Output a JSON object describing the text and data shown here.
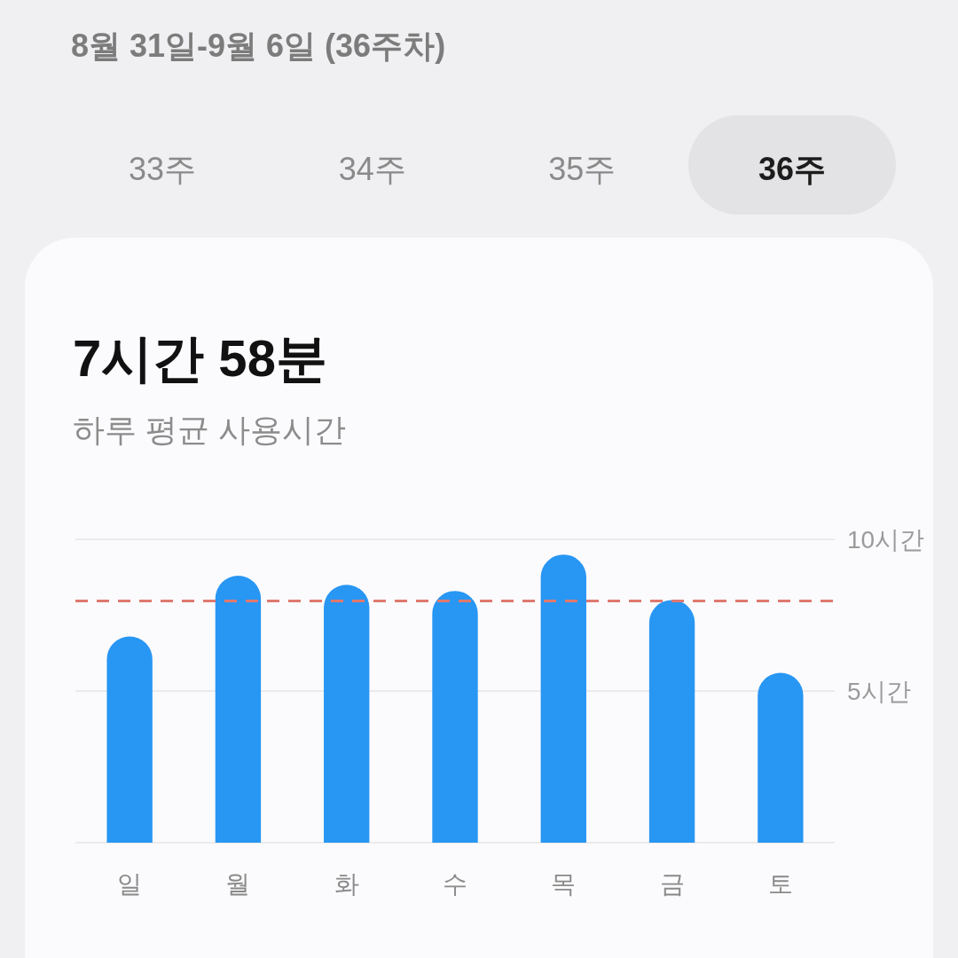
{
  "chart_data": {
    "type": "bar",
    "title": "7시간 58분",
    "subtitle": "하루 평균 사용시간",
    "annotations": [
      "8월 31일-9월 6일 (36주차)",
      "33주",
      "34주",
      "35주",
      "36주"
    ],
    "categories": [
      "일",
      "월",
      "화",
      "수",
      "목",
      "금",
      "토"
    ],
    "values": [
      6.8,
      8.8,
      8.5,
      8.3,
      9.5,
      8.0,
      5.6
    ],
    "color": "#2896f3",
    "ylim": [
      0,
      10
    ],
    "yticks": [
      {
        "value": 0,
        "label": null
      },
      {
        "value": 5,
        "label": "5시간"
      },
      {
        "value": 10,
        "label": "10시간"
      }
    ],
    "grid": "y",
    "ref_lines": [
      {
        "axis": "y",
        "value": 7.97,
        "color": "#e0796f",
        "line_style": "dashed"
      }
    ]
  }
}
